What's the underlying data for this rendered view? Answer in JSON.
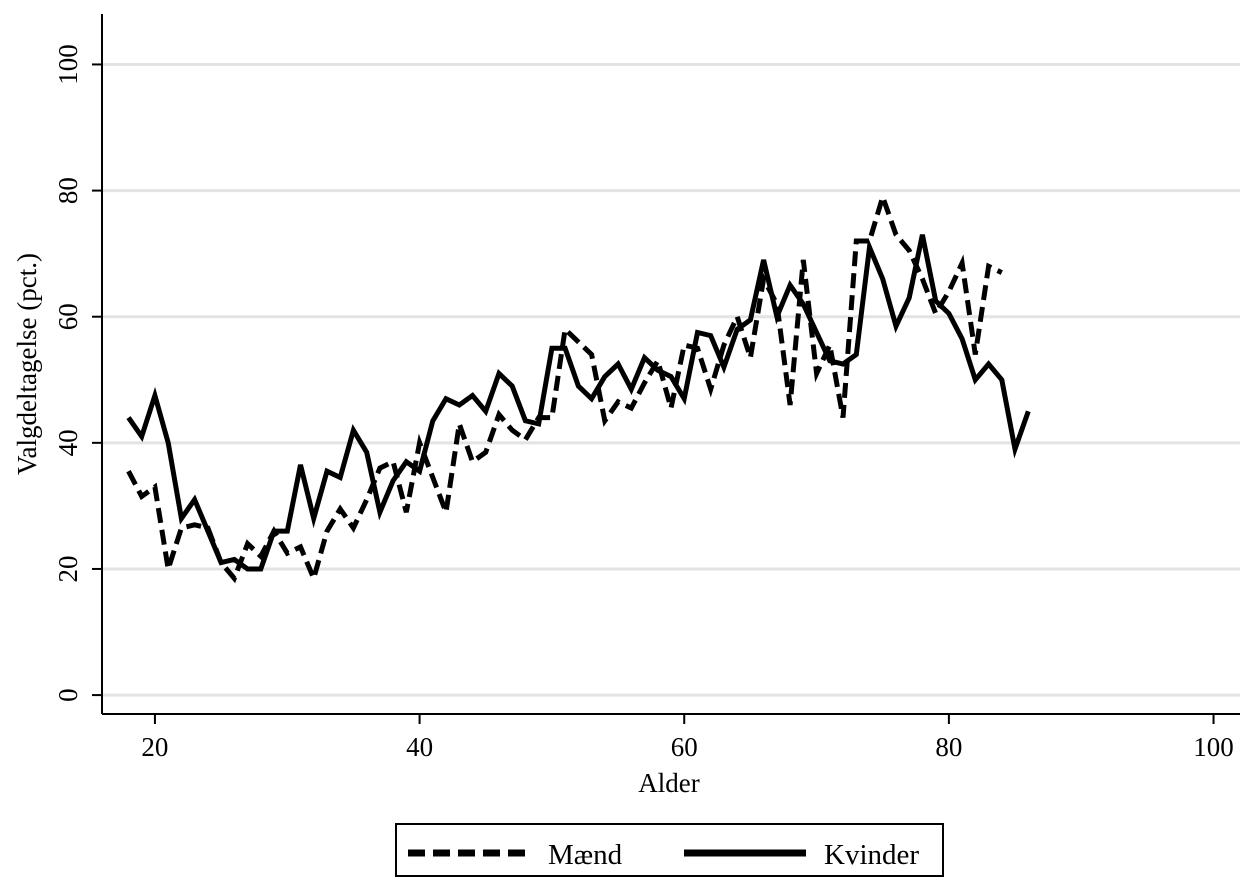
{
  "chart_data": {
    "type": "line",
    "xlabel": "Alder",
    "ylabel": "Valgdeltagelse (pct.)",
    "xlim": [
      16,
      102
    ],
    "ylim": [
      -3,
      108
    ],
    "x_ticks": [
      20,
      40,
      60,
      80,
      100
    ],
    "y_ticks": [
      0,
      20,
      40,
      60,
      80,
      100
    ],
    "grid": "horizontal",
    "legend_position": "bottom",
    "series": [
      {
        "name": "Mænd",
        "style": "dashed",
        "color": "#000000",
        "x": [
          18,
          19,
          20,
          21,
          22,
          23,
          24,
          25,
          26,
          27,
          28,
          29,
          30,
          31,
          32,
          33,
          34,
          35,
          36,
          37,
          38,
          39,
          40,
          41,
          42,
          43,
          44,
          45,
          46,
          47,
          48,
          49,
          50,
          51,
          52,
          53,
          54,
          55,
          56,
          57,
          58,
          59,
          60,
          61,
          62,
          63,
          64,
          65,
          66,
          67,
          68,
          69,
          70,
          71,
          72,
          73,
          74,
          75,
          76,
          77,
          78,
          79,
          80,
          81,
          82,
          83,
          84
        ],
        "y": [
          35.5,
          31.5,
          33,
          20,
          26.5,
          27,
          26.5,
          21,
          18.5,
          24,
          22,
          26,
          22.5,
          23.5,
          18.5,
          26,
          29.5,
          26.5,
          31,
          36,
          37,
          29,
          40,
          34.5,
          29,
          43,
          37,
          38.5,
          44.5,
          42,
          40.5,
          44,
          44,
          58,
          56,
          54,
          43.5,
          46.5,
          45.5,
          49.5,
          53,
          45.5,
          55.5,
          55,
          48.5,
          55.5,
          60,
          53.5,
          66,
          62,
          46,
          69,
          51,
          55.5,
          44,
          72,
          72,
          79,
          73,
          70.5,
          66,
          60.5,
          64,
          68.5,
          54,
          68,
          67
        ]
      },
      {
        "name": "Kvinder",
        "style": "solid",
        "color": "#000000",
        "x": [
          18,
          19,
          20,
          21,
          22,
          23,
          24,
          25,
          26,
          27,
          28,
          29,
          30,
          31,
          32,
          33,
          34,
          35,
          36,
          37,
          38,
          39,
          40,
          41,
          42,
          43,
          44,
          45,
          46,
          47,
          48,
          49,
          50,
          51,
          52,
          53,
          54,
          55,
          56,
          57,
          58,
          59,
          60,
          61,
          62,
          63,
          64,
          65,
          66,
          67,
          68,
          69,
          70,
          71,
          72,
          73,
          74,
          75,
          76,
          77,
          78,
          79,
          80,
          81,
          82,
          83,
          84,
          85,
          86
        ],
        "y": [
          44,
          41,
          47.5,
          40,
          28,
          31,
          26,
          21,
          21.5,
          20,
          20,
          26,
          26,
          36.5,
          28,
          35.5,
          34.5,
          42,
          38.5,
          29,
          34,
          37,
          35.5,
          43.5,
          47,
          46,
          47.5,
          45,
          51,
          49,
          43.5,
          43,
          55,
          55,
          49,
          47,
          50.5,
          52.5,
          48.5,
          53.5,
          51.5,
          50.5,
          47,
          57.5,
          57,
          52,
          58,
          59.5,
          69,
          60,
          65,
          62,
          57.5,
          53,
          52.5,
          54,
          71,
          66,
          58.5,
          63,
          73,
          62.5,
          60.5,
          56.5,
          50,
          52.5,
          50,
          39,
          45
        ]
      }
    ]
  }
}
